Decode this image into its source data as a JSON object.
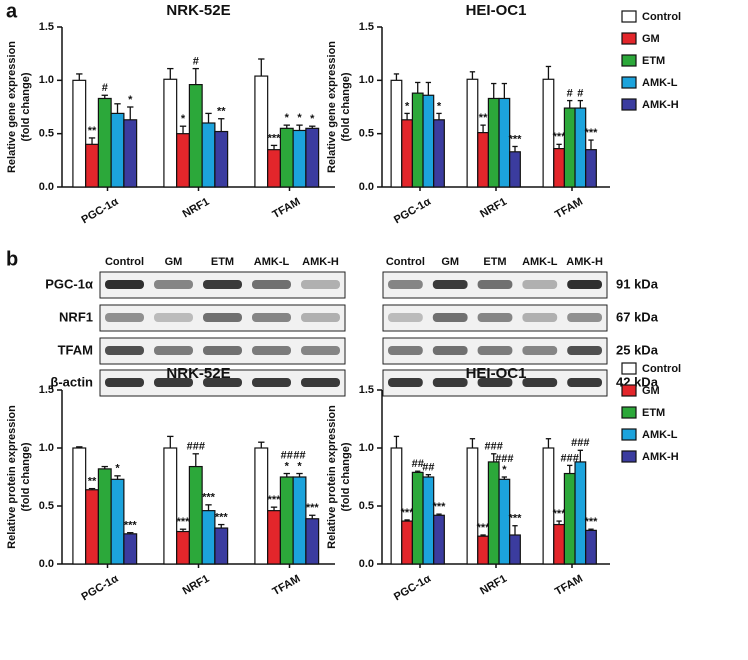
{
  "panel_labels": [
    "a",
    "b"
  ],
  "blot": {
    "lanes": [
      "Control",
      "GM",
      "ETM",
      "AMK-L",
      "AMK-H"
    ],
    "proteins": [
      "PGC-1α",
      "NRF1",
      "TFAM",
      "β-actin"
    ],
    "sizes": [
      "91 kDa",
      "67 kDa",
      "25 kDa",
      "42 kDa"
    ]
  },
  "chart_data": [
    {
      "type": "bar",
      "title": "NRK-52E",
      "y_label": [
        "Relative gene expression",
        "(fold change)"
      ],
      "categories": [
        "PGC-1α",
        "NRF1",
        "TFAM"
      ],
      "ylim": [
        0,
        1.5
      ],
      "yticks": [
        {
          "value": 0,
          "label": "0.0"
        },
        0.5,
        {
          "value": 1,
          "label": "1.0"
        },
        1.5
      ],
      "series": [
        {
          "name": "Control",
          "color": "#ffffff",
          "values": [
            1.0,
            1.01,
            1.04
          ],
          "errors": [
            0.06,
            0.1,
            0.16
          ],
          "annotations": [
            null,
            null,
            null
          ]
        },
        {
          "name": "GM",
          "color": "#e3262b",
          "values": [
            0.4,
            0.5,
            0.35
          ],
          "errors": [
            0.06,
            0.07,
            0.04
          ],
          "annotations": [
            [
              "**"
            ],
            [
              "*"
            ],
            [
              "***"
            ]
          ]
        },
        {
          "name": "ETM",
          "color": "#2ca83a",
          "values": [
            0.83,
            0.96,
            0.55
          ],
          "errors": [
            0.03,
            0.15,
            0.03
          ],
          "annotations": [
            [
              "#"
            ],
            [
              "#"
            ],
            [
              "*"
            ]
          ]
        },
        {
          "name": "AMK-L",
          "color": "#1ca3dc",
          "values": [
            0.69,
            0.6,
            0.53
          ],
          "errors": [
            0.09,
            0.09,
            0.05
          ],
          "annotations": [
            null,
            null,
            [
              "*"
            ]
          ]
        },
        {
          "name": "AMK-H",
          "color": "#3b3c9f",
          "values": [
            0.63,
            0.52,
            0.55
          ],
          "errors": [
            0.12,
            0.12,
            0.02
          ],
          "annotations": [
            [
              "*"
            ],
            [
              "**"
            ],
            [
              "*"
            ]
          ]
        }
      ]
    },
    {
      "type": "bar",
      "title": "HEI-OC1",
      "y_label": [
        "Relative gene expression",
        "(fold change)"
      ],
      "categories": [
        "PGC-1α",
        "NRF1",
        "TFAM"
      ],
      "ylim": [
        0,
        1.5
      ],
      "yticks": [
        {
          "value": 0,
          "label": "0.0"
        },
        0.5,
        {
          "value": 1,
          "label": "1.0"
        },
        1.5
      ],
      "legend": "right",
      "series": [
        {
          "name": "Control",
          "color": "#ffffff",
          "values": [
            1.0,
            1.01,
            1.01
          ],
          "errors": [
            0.06,
            0.07,
            0.12
          ],
          "annotations": [
            null,
            null,
            null
          ]
        },
        {
          "name": "GM",
          "color": "#e3262b",
          "values": [
            0.63,
            0.51,
            0.36
          ],
          "errors": [
            0.06,
            0.07,
            0.04
          ],
          "annotations": [
            [
              "*"
            ],
            [
              "**"
            ],
            [
              "***"
            ]
          ]
        },
        {
          "name": "ETM",
          "color": "#2ca83a",
          "values": [
            0.88,
            0.83,
            0.74
          ],
          "errors": [
            0.1,
            0.14,
            0.07
          ],
          "annotations": [
            null,
            null,
            [
              "#"
            ]
          ]
        },
        {
          "name": "AMK-L",
          "color": "#1ca3dc",
          "values": [
            0.86,
            0.83,
            0.74
          ],
          "errors": [
            0.12,
            0.14,
            0.07
          ],
          "annotations": [
            null,
            null,
            [
              "#"
            ]
          ]
        },
        {
          "name": "AMK-H",
          "color": "#3b3c9f",
          "values": [
            0.63,
            0.33,
            0.35
          ],
          "errors": [
            0.06,
            0.05,
            0.09
          ],
          "annotations": [
            [
              "*"
            ],
            [
              "***"
            ],
            [
              "***"
            ]
          ]
        }
      ]
    },
    {
      "type": "bar",
      "title": "NRK-52E",
      "y_label": [
        "Relative protein expression",
        "(fold change)"
      ],
      "categories": [
        "PGC-1α",
        "NRF1",
        "TFAM"
      ],
      "ylim": [
        0,
        1.5
      ],
      "yticks": [
        {
          "value": 0,
          "label": "0.0"
        },
        0.5,
        {
          "value": 1,
          "label": "1.0"
        },
        1.5
      ],
      "series": [
        {
          "name": "Control",
          "color": "#ffffff",
          "values": [
            1.0,
            1.0,
            1.0
          ],
          "errors": [
            0.01,
            0.1,
            0.05
          ],
          "annotations": [
            null,
            null,
            null
          ]
        },
        {
          "name": "GM",
          "color": "#e3262b",
          "values": [
            0.64,
            0.28,
            0.46
          ],
          "errors": [
            0.01,
            0.02,
            0.03
          ],
          "annotations": [
            [
              "**"
            ],
            [
              "***"
            ],
            [
              "***"
            ]
          ]
        },
        {
          "name": "ETM",
          "color": "#2ca83a",
          "values": [
            0.82,
            0.84,
            0.75
          ],
          "errors": [
            0.02,
            0.11,
            0.03
          ],
          "annotations": [
            null,
            [
              "###"
            ],
            [
              "*",
              "##"
            ]
          ]
        },
        {
          "name": "AMK-L",
          "color": "#1ca3dc",
          "values": [
            0.73,
            0.46,
            0.75
          ],
          "errors": [
            0.03,
            0.05,
            0.03
          ],
          "annotations": [
            [
              "*"
            ],
            [
              "***"
            ],
            [
              "*",
              "##"
            ]
          ]
        },
        {
          "name": "AMK-H",
          "color": "#3b3c9f",
          "values": [
            0.26,
            0.31,
            0.39
          ],
          "errors": [
            0.01,
            0.03,
            0.03
          ],
          "annotations": [
            [
              "***"
            ],
            [
              "***"
            ],
            [
              "***"
            ]
          ]
        }
      ]
    },
    {
      "type": "bar",
      "title": "HEI-OC1",
      "y_label": [
        "Relative protein expression",
        "(fold change)"
      ],
      "categories": [
        "PGC-1α",
        "NRF1",
        "TFAM"
      ],
      "ylim": [
        0,
        1.5
      ],
      "yticks": [
        {
          "value": 0,
          "label": "0.0"
        },
        0.5,
        {
          "value": 1,
          "label": "1.0"
        },
        1.5
      ],
      "legend": "right",
      "series": [
        {
          "name": "Control",
          "color": "#ffffff",
          "values": [
            1.0,
            1.0,
            1.0
          ],
          "errors": [
            0.1,
            0.08,
            0.08
          ],
          "annotations": [
            null,
            null,
            null
          ]
        },
        {
          "name": "GM",
          "color": "#e3262b",
          "values": [
            0.37,
            0.24,
            0.34
          ],
          "errors": [
            0.01,
            0.01,
            0.03
          ],
          "annotations": [
            [
              "***"
            ],
            [
              "***"
            ],
            [
              "***"
            ]
          ]
        },
        {
          "name": "ETM",
          "color": "#2ca83a",
          "values": [
            0.79,
            0.88,
            0.78
          ],
          "errors": [
            0.01,
            0.07,
            0.07
          ],
          "annotations": [
            [
              "##"
            ],
            [
              "###"
            ],
            [
              "###"
            ]
          ]
        },
        {
          "name": "AMK-L",
          "color": "#1ca3dc",
          "values": [
            0.75,
            0.73,
            0.88
          ],
          "errors": [
            0.02,
            0.02,
            0.1
          ],
          "annotations": [
            [
              "##"
            ],
            [
              "*",
              "###"
            ],
            [
              "###"
            ]
          ]
        },
        {
          "name": "AMK-H",
          "color": "#3b3c9f",
          "values": [
            0.42,
            0.25,
            0.29
          ],
          "errors": [
            0.01,
            0.08,
            0.01
          ],
          "annotations": [
            [
              "***"
            ],
            [
              "***"
            ],
            [
              "***"
            ]
          ]
        }
      ]
    }
  ]
}
